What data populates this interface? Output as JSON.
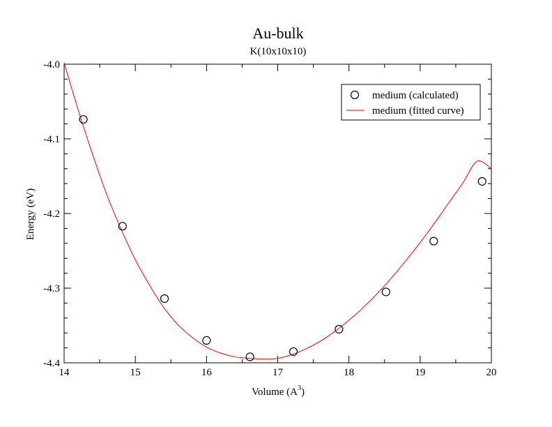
{
  "chart_data": {
    "type": "scatter",
    "title": "Au-bulk",
    "subtitle": "K(10x10x10)",
    "xlabel": "Volume (A",
    "xlabel_sup": "3",
    "xlabel_end": ")",
    "ylabel": "Energy (eV)",
    "xlim": [
      14,
      20
    ],
    "ylim": [
      -4.4,
      -4.0
    ],
    "xticks": [
      14,
      15,
      16,
      17,
      18,
      19,
      20
    ],
    "xtick_labels": [
      "14",
      "15",
      "16",
      "17",
      "18",
      "19",
      "20"
    ],
    "yticks": [
      -4.0,
      -4.1,
      -4.2,
      -4.3,
      -4.4
    ],
    "ytick_labels": [
      "-4.0",
      "-4.1",
      "-4.2",
      "-4.3",
      "-4.4"
    ],
    "grid": false,
    "legend_position": "top-right",
    "series": [
      {
        "name": "medium (calculated)",
        "style": "open-circle-markers",
        "color": "#000000",
        "x": [
          14.27,
          14.82,
          15.41,
          16.0,
          16.61,
          17.22,
          17.86,
          18.52,
          19.19,
          19.87
        ],
        "y": [
          -4.074,
          -4.217,
          -4.314,
          -4.37,
          -4.392,
          -4.385,
          -4.355,
          -4.305,
          -4.237,
          -4.157
        ]
      },
      {
        "name": "medium (fitted curve)",
        "style": "line",
        "color": "#ff0000",
        "x": [
          14.0,
          14.2,
          14.4,
          14.6,
          14.8,
          15.0,
          15.2,
          15.4,
          15.6,
          15.8,
          16.0,
          16.2,
          16.4,
          16.6,
          16.8,
          17.0,
          17.2,
          17.4,
          17.6,
          17.8,
          18.0,
          18.2,
          18.4,
          18.6,
          18.8,
          19.0,
          19.2,
          19.4,
          19.6,
          19.8,
          20.0
        ],
        "y": [
          -3.998,
          -4.062,
          -4.121,
          -4.175,
          -4.221,
          -4.262,
          -4.296,
          -4.326,
          -4.349,
          -4.366,
          -4.379,
          -4.387,
          -4.392,
          -4.394,
          -4.395,
          -4.394,
          -4.389,
          -4.381,
          -4.371,
          -4.358,
          -4.343,
          -4.326,
          -4.307,
          -4.286,
          -4.263,
          -4.239,
          -4.213,
          -4.186,
          -4.159,
          -4.13,
          -4.14
        ]
      }
    ]
  }
}
